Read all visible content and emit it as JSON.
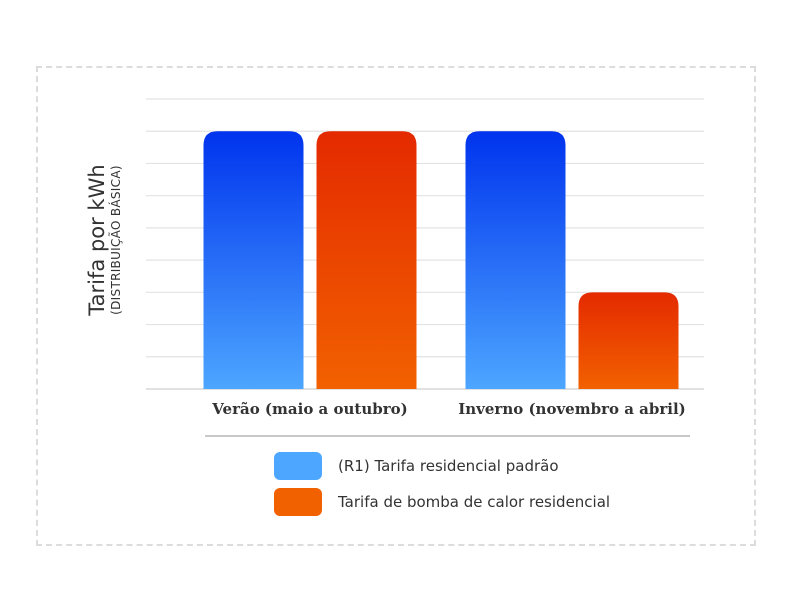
{
  "chart_data": {
    "type": "bar",
    "title": "",
    "ylabel": "Tarifa por kWh",
    "ylabel_sub": "(DISTRIBUIÇÃO BÁSICA)",
    "xlabel": "",
    "categories": [
      "Verão (maio a outubro)",
      "Inverno (novembro a abril)"
    ],
    "series": [
      {
        "name": "(R1) Tarifa residencial padrão",
        "values": [
          8,
          8
        ],
        "color_top": "#0033ee",
        "color_bottom": "#4da6ff"
      },
      {
        "name": "Tarifa de bomba de calor residencial",
        "values": [
          8,
          3
        ],
        "color_top": "#e42a00",
        "color_bottom": "#f26100"
      }
    ],
    "ylim": [
      0,
      9
    ],
    "grid": true,
    "legend_position": "bottom"
  }
}
